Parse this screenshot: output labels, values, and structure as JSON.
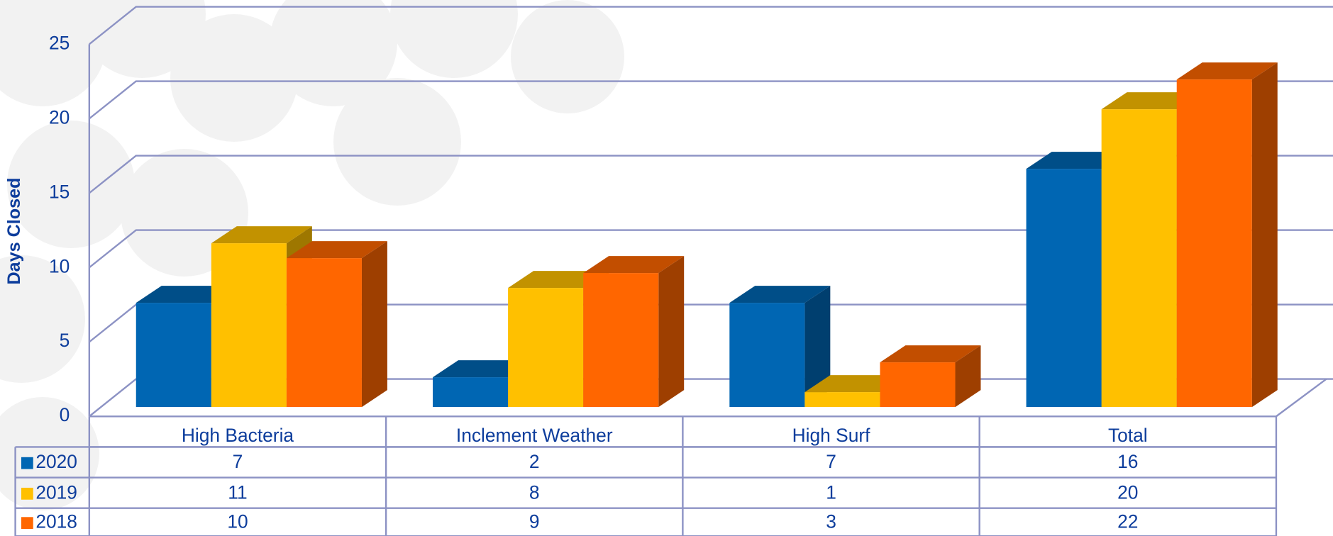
{
  "chart_data": {
    "type": "bar3d",
    "y_label": "Days Closed",
    "categories": [
      "High Bacteria",
      "Inclement Weather",
      "High Surf",
      "Total"
    ],
    "series": [
      {
        "name": "2020",
        "color": "#0066b3",
        "values": [
          7,
          2,
          7,
          16
        ]
      },
      {
        "name": "2019",
        "color": "#ffc000",
        "values": [
          11,
          8,
          1,
          20
        ]
      },
      {
        "name": "2018",
        "color": "#ff6600",
        "values": [
          10,
          9,
          3,
          22
        ]
      }
    ],
    "ylim": [
      0,
      25
    ],
    "yticks": [
      0,
      5,
      10,
      15,
      20,
      25
    ],
    "grid": true,
    "data_table": true
  }
}
